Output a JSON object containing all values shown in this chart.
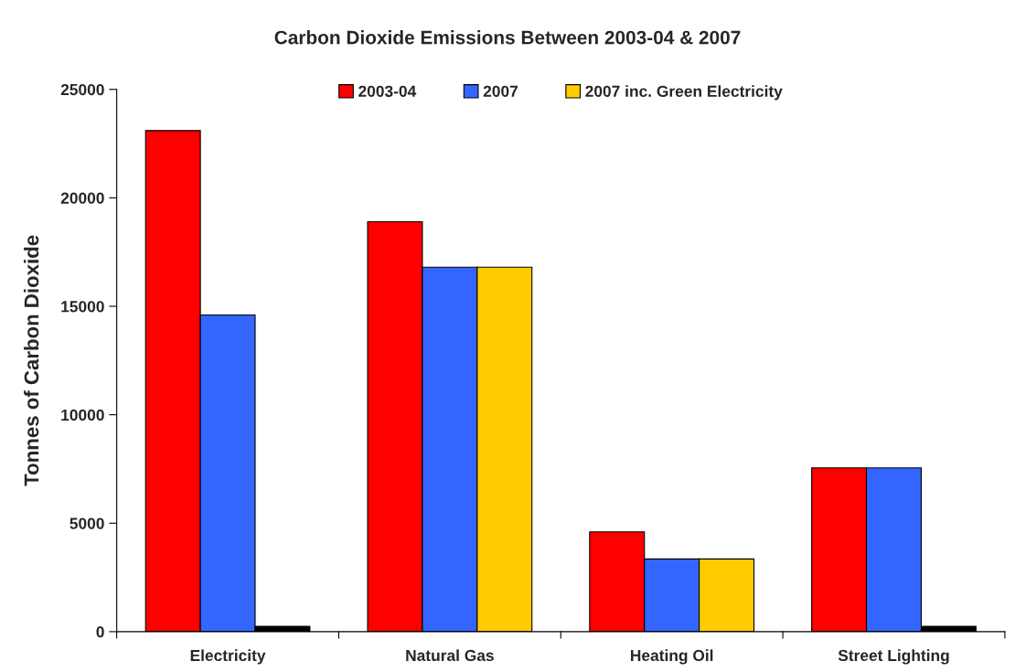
{
  "chart_data": {
    "type": "bar",
    "title": "Carbon Dioxide Emissions Between 2003-04 & 2007",
    "ylabel": "Tonnes of Carbon Dioxide",
    "categories": [
      "Electricity",
      "Natural Gas",
      "Heating Oil",
      "Street Lighting"
    ],
    "series": [
      {
        "name": "2003-04",
        "color": "#ff0000",
        "values": [
          23100,
          18900,
          4600,
          7550
        ]
      },
      {
        "name": "2007",
        "color": "#3366ff",
        "values": [
          14600,
          16800,
          3350,
          7550
        ]
      },
      {
        "name": "2007 inc. Green Electricity",
        "color": "#ffcc00",
        "colors": [
          "#000000",
          "#ffcc00",
          "#ffcc00",
          "#000000"
        ],
        "values": [
          250,
          16800,
          3350,
          250
        ]
      }
    ],
    "ylim": [
      0,
      25000
    ],
    "yticks": [
      0,
      5000,
      10000,
      15000,
      20000,
      25000
    ],
    "grid": false,
    "legend": "top"
  }
}
